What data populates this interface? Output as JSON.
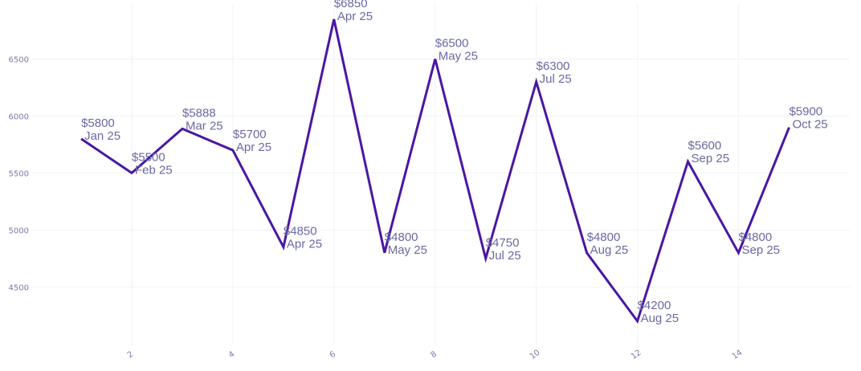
{
  "chart_data": {
    "type": "line",
    "title": "",
    "xlabel": "",
    "ylabel": "",
    "x": [
      1,
      2,
      3,
      4,
      5,
      6,
      7,
      8,
      9,
      10,
      11,
      12,
      13,
      14,
      15
    ],
    "series": [
      {
        "values": [
          5800,
          5500,
          5888,
          5700,
          4850,
          6850,
          4800,
          6500,
          4750,
          6300,
          4800,
          4200,
          5600,
          4800,
          5900
        ],
        "labels": [
          [
            "$5800",
            "Jan 25"
          ],
          [
            "$5500",
            "Feb 25"
          ],
          [
            "$5888",
            "Mar 25"
          ],
          [
            "$5700",
            "Apr 25"
          ],
          [
            "$4850",
            "Apr 25"
          ],
          [
            "$6850",
            "Apr 25"
          ],
          [
            "$4800",
            "May 25"
          ],
          [
            "$6500",
            "May 25"
          ],
          [
            "$4750",
            "Jul 25"
          ],
          [
            "$6300",
            "Jul 25"
          ],
          [
            "$4800",
            "Aug 25"
          ],
          [
            "$4200",
            "Aug 25"
          ],
          [
            "$5600",
            "Sep 25"
          ],
          [
            "$4800",
            "Sep 25"
          ],
          [
            "$5900",
            "Oct 25"
          ]
        ]
      }
    ],
    "x_ticks": [
      2,
      4,
      6,
      8,
      10,
      12,
      14
    ],
    "y_ticks": [
      4500,
      5000,
      5500,
      6000,
      6500
    ],
    "xlim": [
      0.03,
      16.2
    ],
    "ylim": [
      3995,
      6990
    ],
    "grid": true,
    "legend": "none",
    "colors": {
      "line": "#4a17a3",
      "labels": "#6b68a3",
      "ticks": "#7b78a8",
      "grid": "#f2f2f7"
    }
  }
}
